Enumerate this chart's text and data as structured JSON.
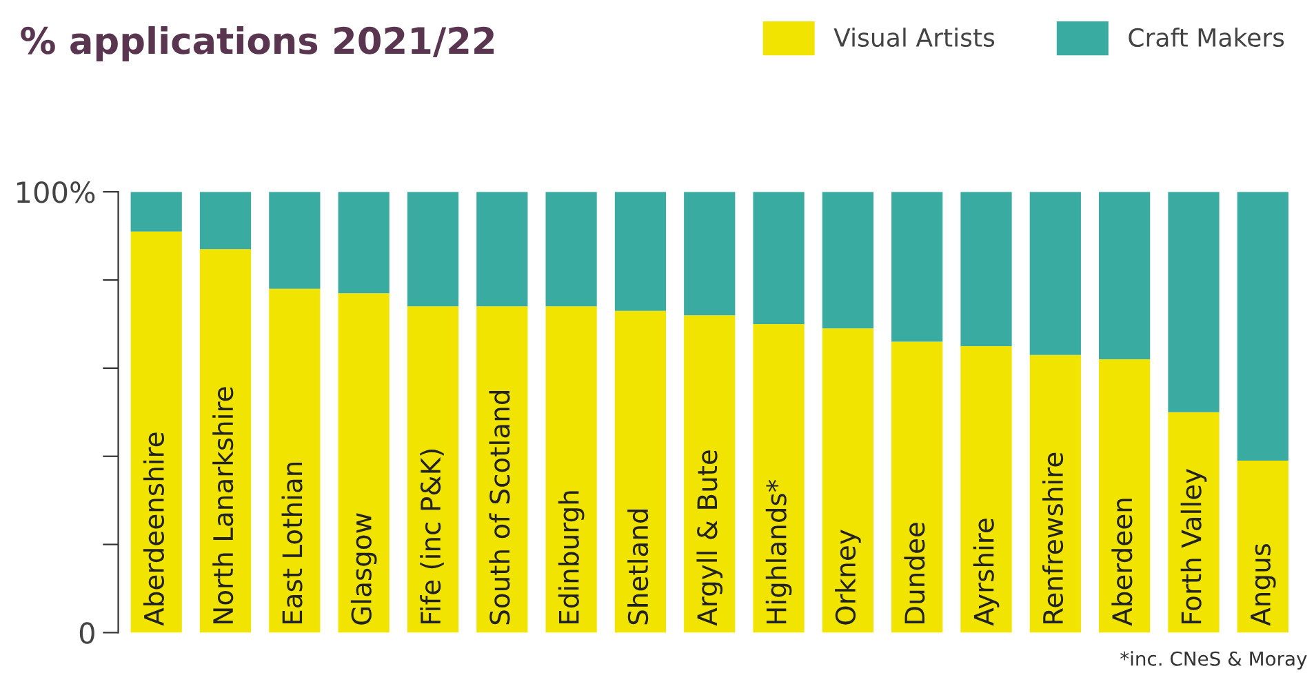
{
  "chart_data": {
    "type": "bar",
    "title": "% applications 2021/22",
    "stacked": true,
    "categories": [
      "Aberdeenshire",
      "North Lanarkshire",
      "East Lothian",
      "Glasgow",
      "Fife (inc P&K)",
      "South of Scotland",
      "Edinburgh",
      "Shetland",
      "Argyll & Bute",
      "Highlands*",
      "Orkney",
      "Dundee",
      "Ayrshire",
      "Renfrewshire",
      "Aberdeen",
      "Forth Valley",
      "Angus"
    ],
    "series": [
      {
        "name": "Visual Artists",
        "color": "#f0e400",
        "values": [
          91,
          87,
          78,
          77,
          74,
          74,
          74,
          73,
          72,
          70,
          69,
          66,
          65,
          63,
          62,
          50,
          39
        ]
      },
      {
        "name": "Craft Makers",
        "color": "#3aaba0",
        "values": [
          9,
          13,
          22,
          23,
          26,
          26,
          26,
          27,
          28,
          30,
          31,
          34,
          35,
          37,
          38,
          50,
          61
        ]
      }
    ],
    "ylim": [
      0,
      100
    ],
    "yticks": [
      0,
      {
        "value": 20,
        "label": null
      },
      {
        "value": 40,
        "label": null
      },
      {
        "value": 60,
        "label": null
      },
      {
        "value": 80,
        "label": null
      },
      {
        "value": 100,
        "label": "100%"
      }
    ],
    "legend": "top right",
    "grid": false,
    "annotations": [
      "*inc. CNeS & Moray"
    ]
  }
}
